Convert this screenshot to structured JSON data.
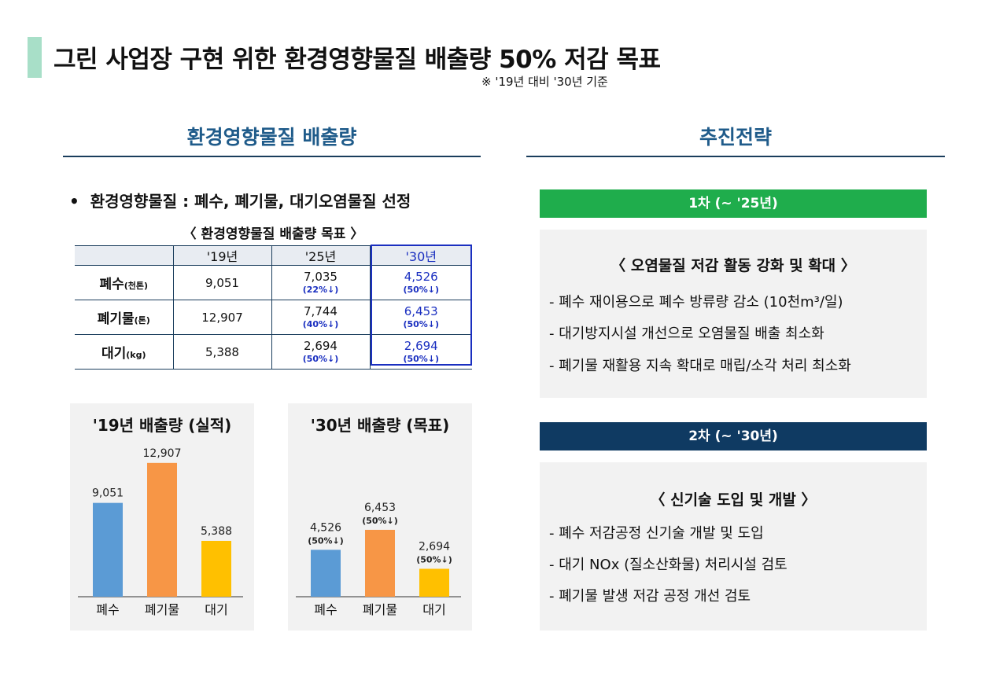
{
  "header": {
    "title": "그린 사업장 구현 위한 환경영향물질 배출량 50% 저감 목표",
    "note": "※ '19년 대비 '30년 기준"
  },
  "left_section": {
    "title": "환경영향물질 배출량",
    "bullet": "환경영향물질 : 폐수, 폐기물, 대기오염물질 선정",
    "table_caption": "〈 환경영향물질 배출량 목표 〉",
    "table": {
      "columns": [
        "",
        "'19년",
        "'25년",
        "'30년"
      ],
      "rows": [
        {
          "label": "폐수",
          "unit": "(천톤)",
          "y19": "9,051",
          "y25": "7,035",
          "y25_pct": "(22%↓)",
          "y30": "4,526",
          "y30_pct": "(50%↓)"
        },
        {
          "label": "폐기물",
          "unit": "(톤)",
          "y19": "12,907",
          "y25": "7,744",
          "y25_pct": "(40%↓)",
          "y30": "6,453",
          "y30_pct": "(50%↓)"
        },
        {
          "label": "대기",
          "unit": "(kg)",
          "y19": "5,388",
          "y25": "2,694",
          "y25_pct": "(50%↓)",
          "y30": "2,694",
          "y30_pct": "(50%↓)"
        }
      ]
    }
  },
  "chart_data": [
    {
      "type": "bar",
      "title": "'19년 배출량 (실적)",
      "categories": [
        "폐수",
        "폐기물",
        "대기"
      ],
      "values": [
        9051,
        12907,
        5388
      ],
      "value_labels": [
        "9,051",
        "12,907",
        "5,388"
      ],
      "pct_labels": [
        "",
        "",
        ""
      ],
      "colors": [
        "#5b9bd5",
        "#f79646",
        "#ffc000"
      ],
      "ylim": [
        0,
        13500
      ]
    },
    {
      "type": "bar",
      "title": "'30년 배출량 (목표)",
      "categories": [
        "폐수",
        "폐기물",
        "대기"
      ],
      "values": [
        4526,
        6453,
        2694
      ],
      "value_labels": [
        "4,526",
        "6,453",
        "2,694"
      ],
      "pct_labels": [
        "(50%↓)",
        "(50%↓)",
        "(50%↓)"
      ],
      "colors": [
        "#5b9bd5",
        "#f79646",
        "#ffc000"
      ],
      "ylim": [
        0,
        13500
      ]
    }
  ],
  "right_section": {
    "title": "추진전략",
    "phase1": {
      "label": "1차 (~ '25년)",
      "heading": "〈 오염물질 저감 활동 강화 및 확대 〉",
      "items": [
        "-  폐수 재이용으로 폐수 방류량 감소 (10천m³/일)",
        "-  대기방지시설 개선으로 오염물질 배출 최소화",
        "-  폐기물 재활용 지속 확대로 매립/소각 처리 최소화"
      ]
    },
    "phase2": {
      "label": "2차 (~ '30년)",
      "heading": "〈 신기술 도입 및 개발 〉",
      "items": [
        "- 폐수 저감공정 신기술 개발 및 도입",
        "- 대기 NOx (질소산화물) 처리시설 검토",
        "- 폐기물 발생 저감 공정 개선 검토"
      ]
    }
  },
  "colors": {
    "accent_mint": "#a8dfc8",
    "section_title": "#1f5b8a",
    "phase1_green": "#1fad4c",
    "phase2_navy": "#0f3a62",
    "target_blue": "#1a2fc0"
  }
}
